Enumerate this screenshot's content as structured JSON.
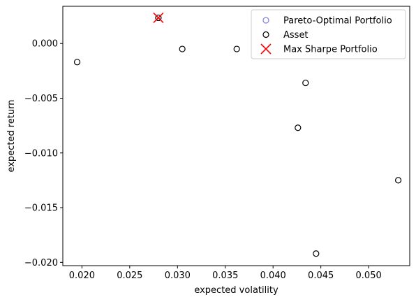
{
  "chart_data": {
    "type": "scatter",
    "title": "",
    "xlabel": "expected volatility",
    "ylabel": "expected return",
    "xlim": [
      0.018,
      0.0543
    ],
    "ylim": [
      -0.0203,
      0.0034
    ],
    "xticks": [
      0.02,
      0.025,
      0.03,
      0.035,
      0.04,
      0.045,
      0.05
    ],
    "xtick_labels": [
      "0.020",
      "0.025",
      "0.030",
      "0.035",
      "0.040",
      "0.045",
      "0.050"
    ],
    "yticks": [
      0.0,
      -0.005,
      -0.01,
      -0.015,
      -0.02
    ],
    "ytick_labels": [
      "0.000",
      "−0.005",
      "−0.010",
      "−0.015",
      "−0.020"
    ],
    "grid": false,
    "legend_position": "top-right",
    "series": [
      {
        "name": "Pareto-Optimal Portfolio",
        "marker": "circle-open",
        "color": "#7f7fdd",
        "points": [
          [
            0.028,
            0.00235
          ]
        ]
      },
      {
        "name": "Asset",
        "marker": "circle-open",
        "color": "#000000",
        "points": [
          [
            0.0195,
            -0.0017
          ],
          [
            0.028,
            0.00235
          ],
          [
            0.0305,
            -0.0005
          ],
          [
            0.0362,
            -0.0005
          ],
          [
            0.0434,
            -0.0036
          ],
          [
            0.0426,
            -0.0077
          ],
          [
            0.0531,
            -0.0125
          ],
          [
            0.0445,
            -0.0192
          ]
        ]
      },
      {
        "name": "Max Sharpe Portfolio",
        "marker": "x",
        "color": "#ff0000",
        "points": [
          [
            0.028,
            0.00235
          ]
        ]
      }
    ]
  }
}
